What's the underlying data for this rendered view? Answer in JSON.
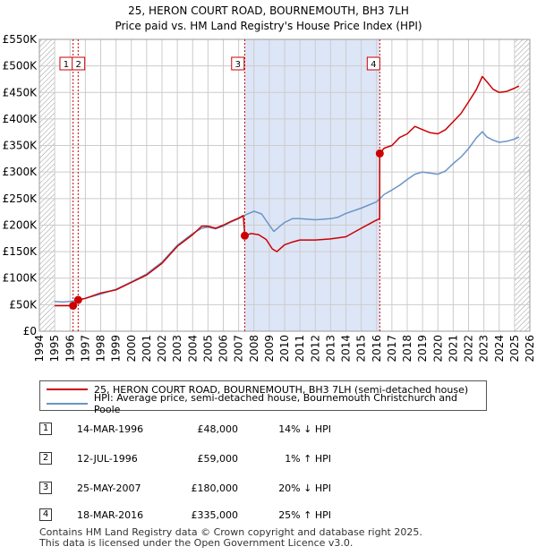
{
  "title_line1": "25, HERON COURT ROAD, BOURNEMOUTH, BH3 7LH",
  "title_line2": "Price paid vs. HM Land Registry's House Price Index (HPI)",
  "colors": {
    "property": "#cc0000",
    "hpi": "#6b94c8",
    "shade": "#dde6f7",
    "grid": "#cccccc",
    "hatch": "#888888"
  },
  "chart_data": {
    "type": "line",
    "title": "25, HERON COURT ROAD, BOURNEMOUTH, BH3 7LH — Price paid vs. HM Land Registry's House Price Index (HPI)",
    "xlabel": "",
    "ylabel": "",
    "xlim": [
      1994,
      2026
    ],
    "ylim": [
      0,
      550000
    ],
    "x_ticks": [
      1994,
      1995,
      1996,
      1997,
      1998,
      1999,
      2000,
      2001,
      2002,
      2003,
      2004,
      2005,
      2006,
      2007,
      2008,
      2009,
      2010,
      2011,
      2012,
      2013,
      2014,
      2015,
      2016,
      2017,
      2018,
      2019,
      2020,
      2021,
      2022,
      2023,
      2024,
      2025,
      2026
    ],
    "y_ticks": [
      {
        "value": 0,
        "label": "£0"
      },
      {
        "value": 50000,
        "label": "£50K"
      },
      {
        "value": 100000,
        "label": "£100K"
      },
      {
        "value": 150000,
        "label": "£150K"
      },
      {
        "value": 200000,
        "label": "£200K"
      },
      {
        "value": 250000,
        "label": "£250K"
      },
      {
        "value": 300000,
        "label": "£300K"
      },
      {
        "value": 350000,
        "label": "£350K"
      },
      {
        "value": 400000,
        "label": "£400K"
      },
      {
        "value": 450000,
        "label": "£450K"
      },
      {
        "value": 500000,
        "label": "£500K"
      },
      {
        "value": 550000,
        "label": "£550K"
      }
    ],
    "grid": true,
    "legend_position": "below",
    "shaded_region": [
      2007.4,
      2016.2
    ],
    "hatched_before": 1994.99,
    "hatched_after": 2025.0,
    "series": [
      {
        "name": "25, HERON COURT ROAD, BOURNEMOUTH, BH3 7LH (semi-detached house)",
        "color": "#cc0000",
        "points": [
          [
            1995.0,
            48000
          ],
          [
            1995.5,
            48000
          ],
          [
            1996.0,
            48000
          ],
          [
            1996.2,
            48000
          ],
          [
            1996.5,
            59000
          ],
          [
            1997.0,
            62000
          ],
          [
            1998.0,
            72000
          ],
          [
            1999.0,
            78000
          ],
          [
            2000.0,
            92000
          ],
          [
            2001.0,
            106000
          ],
          [
            2002.0,
            128000
          ],
          [
            2003.0,
            160000
          ],
          [
            2004.0,
            182000
          ],
          [
            2004.6,
            198000
          ],
          [
            2005.0,
            198000
          ],
          [
            2005.5,
            194000
          ],
          [
            2006.0,
            200000
          ],
          [
            2006.5,
            207000
          ],
          [
            2007.0,
            213000
          ],
          [
            2007.3,
            218000
          ],
          [
            2007.4,
            180000
          ],
          [
            2007.8,
            184000
          ],
          [
            2008.3,
            182000
          ],
          [
            2008.8,
            173000
          ],
          [
            2009.2,
            155000
          ],
          [
            2009.5,
            150000
          ],
          [
            2010.0,
            163000
          ],
          [
            2010.5,
            168000
          ],
          [
            2011.0,
            172000
          ],
          [
            2012.0,
            172000
          ],
          [
            2013.0,
            174000
          ],
          [
            2014.0,
            178000
          ],
          [
            2015.0,
            194000
          ],
          [
            2015.9,
            208000
          ],
          [
            2016.2,
            212000
          ],
          [
            2016.21,
            335000
          ],
          [
            2016.5,
            345000
          ],
          [
            2017.0,
            350000
          ],
          [
            2017.5,
            365000
          ],
          [
            2018.0,
            372000
          ],
          [
            2018.5,
            386000
          ],
          [
            2019.0,
            380000
          ],
          [
            2019.5,
            374000
          ],
          [
            2020.0,
            372000
          ],
          [
            2020.5,
            380000
          ],
          [
            2021.0,
            395000
          ],
          [
            2021.5,
            410000
          ],
          [
            2022.0,
            432000
          ],
          [
            2022.5,
            455000
          ],
          [
            2022.9,
            480000
          ],
          [
            2023.2,
            470000
          ],
          [
            2023.6,
            456000
          ],
          [
            2024.0,
            450000
          ],
          [
            2024.5,
            452000
          ],
          [
            2025.0,
            458000
          ],
          [
            2025.3,
            462000
          ]
        ]
      },
      {
        "name": "HPI: Average price, semi-detached house, Bournemouth Christchurch and Poole",
        "color": "#6b94c8",
        "points": [
          [
            1995.0,
            56000
          ],
          [
            1995.5,
            55000
          ],
          [
            1996.0,
            56000
          ],
          [
            1996.5,
            58000
          ],
          [
            1997.0,
            62000
          ],
          [
            1998.0,
            70000
          ],
          [
            1999.0,
            79000
          ],
          [
            2000.0,
            93000
          ],
          [
            2001.0,
            108000
          ],
          [
            2002.0,
            130000
          ],
          [
            2003.0,
            162000
          ],
          [
            2004.0,
            184000
          ],
          [
            2004.6,
            194000
          ],
          [
            2005.0,
            196000
          ],
          [
            2005.5,
            193000
          ],
          [
            2006.0,
            198000
          ],
          [
            2006.5,
            206000
          ],
          [
            2007.0,
            212000
          ],
          [
            2007.5,
            220000
          ],
          [
            2008.0,
            226000
          ],
          [
            2008.5,
            221000
          ],
          [
            2009.0,
            200000
          ],
          [
            2009.3,
            188000
          ],
          [
            2009.7,
            198000
          ],
          [
            2010.0,
            205000
          ],
          [
            2010.5,
            212000
          ],
          [
            2011.0,
            212000
          ],
          [
            2012.0,
            210000
          ],
          [
            2013.0,
            212000
          ],
          [
            2013.5,
            215000
          ],
          [
            2014.0,
            222000
          ],
          [
            2015.0,
            232000
          ],
          [
            2016.0,
            244000
          ],
          [
            2016.5,
            258000
          ],
          [
            2017.0,
            266000
          ],
          [
            2017.5,
            275000
          ],
          [
            2018.0,
            286000
          ],
          [
            2018.5,
            296000
          ],
          [
            2019.0,
            300000
          ],
          [
            2019.5,
            298000
          ],
          [
            2020.0,
            296000
          ],
          [
            2020.5,
            302000
          ],
          [
            2021.0,
            316000
          ],
          [
            2021.5,
            328000
          ],
          [
            2022.0,
            344000
          ],
          [
            2022.5,
            364000
          ],
          [
            2022.9,
            376000
          ],
          [
            2023.2,
            366000
          ],
          [
            2023.6,
            360000
          ],
          [
            2024.0,
            356000
          ],
          [
            2024.5,
            358000
          ],
          [
            2025.0,
            362000
          ],
          [
            2025.3,
            366000
          ]
        ]
      }
    ],
    "sale_markers": [
      {
        "label": "1",
        "x": 1996.2,
        "y": 48000
      },
      {
        "label": "2",
        "x": 1996.53,
        "y": 59000
      },
      {
        "label": "3",
        "x": 2007.4,
        "y": 180000
      },
      {
        "label": "4",
        "x": 2016.21,
        "y": 335000
      }
    ],
    "annotation_boxes": [
      {
        "label": "1",
        "x": 1995.75
      },
      {
        "label": "2",
        "x": 1996.55
      },
      {
        "label": "3",
        "x": 2006.95
      },
      {
        "label": "4",
        "x": 2015.8
      }
    ]
  },
  "legend": {
    "property": "25, HERON COURT ROAD, BOURNEMOUTH, BH3 7LH (semi-detached house)",
    "hpi": "HPI: Average price, semi-detached house, Bournemouth Christchurch and Poole"
  },
  "sales": [
    {
      "num": "1",
      "date": "14-MAR-1996",
      "price": "£48,000",
      "hpi": "14% ↓ HPI"
    },
    {
      "num": "2",
      "date": "12-JUL-1996",
      "price": "£59,000",
      "hpi": "1% ↑ HPI"
    },
    {
      "num": "3",
      "date": "25-MAY-2007",
      "price": "£180,000",
      "hpi": "20% ↓ HPI"
    },
    {
      "num": "4",
      "date": "18-MAR-2016",
      "price": "£335,000",
      "hpi": "25% ↑ HPI"
    }
  ],
  "footer": {
    "line1": "Contains HM Land Registry data © Crown copyright and database right 2025.",
    "line2": "This data is licensed under the Open Government Licence v3.0."
  }
}
